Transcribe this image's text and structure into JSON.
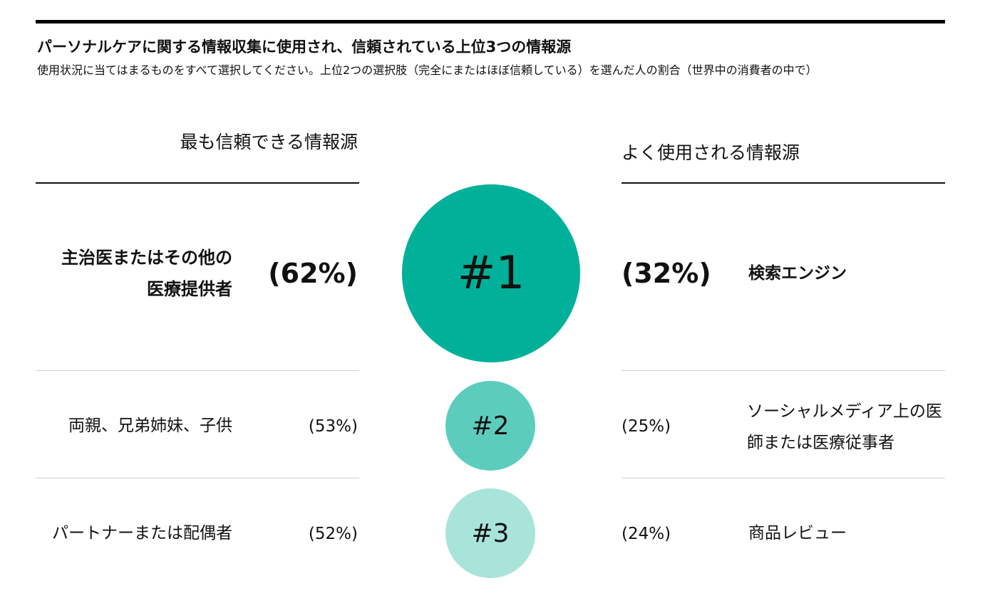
{
  "header": {
    "title": "パーソナルケアに関する情報収集に使用され、信頼されている上位3つの情報源",
    "subtitle": "使用状況に当てはまるものをすべて選択してください。上位2つの選択肢（完全にまたはほぼ信頼している）を選んだ人の割合（世界中の消費者の中で）"
  },
  "columns": {
    "left_heading": "最も信頼できる情報源",
    "right_heading": "よく使用される情報源"
  },
  "colors": {
    "rank1": "#00b098",
    "rank2": "#5ccdbd",
    "rank3": "#a8e4da"
  },
  "chart_data": {
    "type": "table",
    "title": "パーソナルケアに関する情報収集に使用され、信頼されている上位3つの情報源",
    "ranks": [
      "#1",
      "#2",
      "#3"
    ],
    "trusted": [
      {
        "label": "主治医またはその他の医療提供者",
        "value": 62,
        "display": "(62%)"
      },
      {
        "label": "両親、兄弟姉妹、子供",
        "value": 53,
        "display": "(53%)"
      },
      {
        "label": "パートナーまたは配偶者",
        "value": 52,
        "display": "(52%)"
      }
    ],
    "used": [
      {
        "label": "検索エンジン",
        "value": 32,
        "display": "(32%)"
      },
      {
        "label": "ソーシャルメディア上の医師または医療従事者",
        "value": 25,
        "display": "(25%)"
      },
      {
        "label": "商品レビュー",
        "value": 24,
        "display": "(24%)"
      }
    ]
  }
}
